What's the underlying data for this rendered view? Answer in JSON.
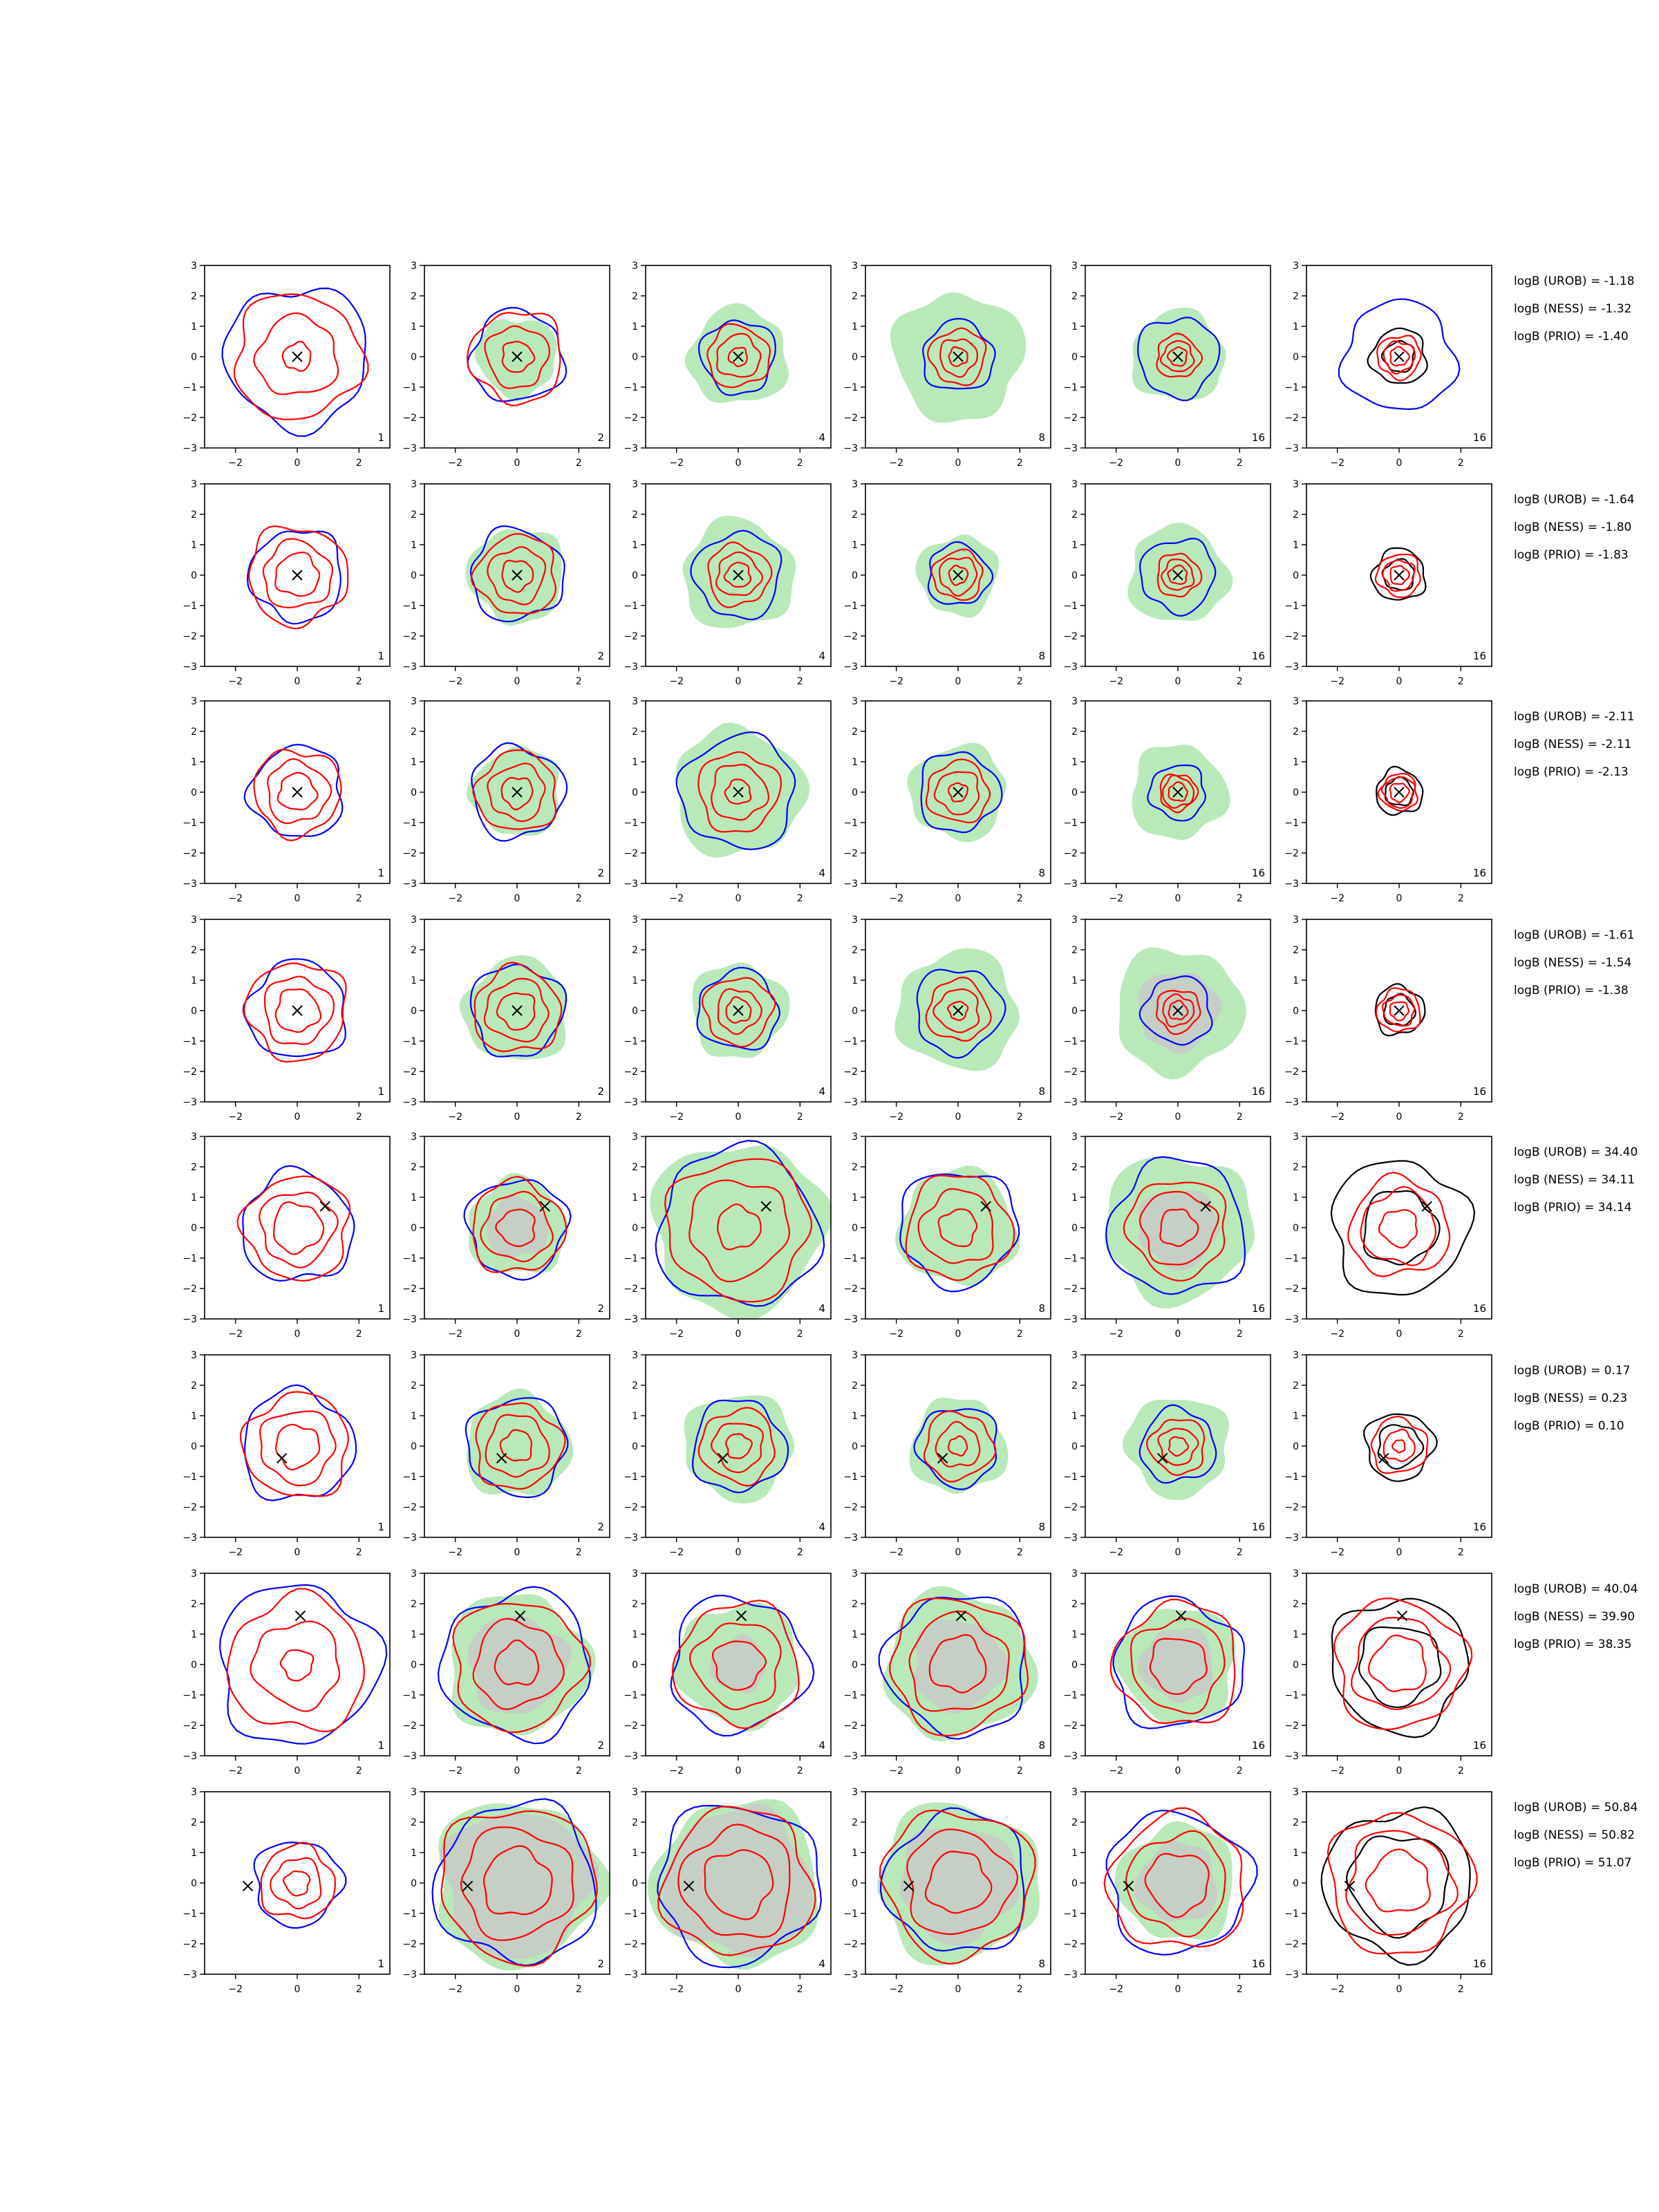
{
  "chart_data": {
    "type": "contour",
    "title": "",
    "grid": false,
    "xlim": [
      -3,
      3
    ],
    "ylim": [
      -3,
      3
    ],
    "xticks": [
      -2,
      0,
      2
    ],
    "yticks": [
      -3,
      -2,
      -1,
      0,
      1,
      2,
      3
    ],
    "xtick_labels": [
      "−2",
      "0",
      "2"
    ],
    "ytick_labels": [
      "−3",
      "−2",
      "−1",
      "0",
      "1",
      "2",
      "3"
    ],
    "colors": {
      "blue": "#0000ff",
      "red": "#ff0000",
      "black": "#000000",
      "green_fill": "#b9e9b9",
      "gray_fill": "#c8c8c8"
    },
    "column_labels": [
      "1",
      "2",
      "4",
      "8",
      "16",
      "16"
    ],
    "rows": [
      {
        "marker": [
          0,
          0
        ],
        "bayes_labels": [
          "logB (UROB) = -1.18",
          "logB (NESS) = -1.32",
          "logB (PRIO) = -1.40"
        ],
        "blue_r": [
          2.3,
          1.5,
          1.2,
          1.15,
          1.3,
          1.8
        ],
        "red_r": [
          [
            0.45,
            1.3,
            2.05
          ],
          [
            0.5,
            1.0,
            1.5
          ],
          [
            0.3,
            0.7,
            1.0
          ],
          [
            0.3,
            0.6,
            0.9
          ],
          [
            0.3,
            0.5,
            0.7
          ],
          [
            0.3,
            0.5,
            0.7
          ]
        ],
        "green_r": [
          0,
          1.3,
          1.6,
          2.1,
          1.5,
          0
        ],
        "gray_r": [
          0,
          0,
          0,
          0,
          0,
          0
        ],
        "black_r": [
          0.5,
          0.9
        ]
      },
      {
        "marker": [
          0,
          0
        ],
        "bayes_labels": [
          "logB (UROB) = -1.64",
          "logB (NESS) = -1.80",
          "logB (PRIO) = -1.83"
        ],
        "blue_r": [
          1.5,
          1.5,
          1.4,
          1.0,
          1.2,
          0
        ],
        "red_r": [
          [
            0.7,
            1.1,
            1.6
          ],
          [
            0.5,
            0.9,
            1.3
          ],
          [
            0.4,
            0.7,
            1.0
          ],
          [
            0.3,
            0.6,
            0.8
          ],
          [
            0.3,
            0.5,
            0.7
          ],
          [
            0.3,
            0.5,
            0.7
          ]
        ],
        "green_r": [
          0,
          1.55,
          1.8,
          1.3,
          1.6,
          0
        ],
        "gray_r": [
          0,
          0,
          0,
          0,
          0,
          0
        ],
        "black_r": [
          0.5,
          0.85
        ]
      },
      {
        "marker": [
          0,
          0
        ],
        "bayes_labels": [
          "logB (UROB) = -2.11",
          "logB (NESS) = -2.11",
          "logB (PRIO) = -2.13"
        ],
        "blue_r": [
          1.5,
          1.5,
          1.85,
          1.3,
          0.9,
          0
        ],
        "red_r": [
          [
            0.6,
            1.0,
            1.4
          ],
          [
            0.5,
            0.9,
            1.3
          ],
          [
            0.4,
            0.9,
            1.3
          ],
          [
            0.3,
            0.7,
            1.0
          ],
          [
            0.3,
            0.5,
            0.6
          ],
          [
            0.3,
            0.5,
            0.6
          ]
        ],
        "green_r": [
          0,
          1.45,
          2.1,
          1.55,
          1.55,
          0
        ],
        "gray_r": [
          0,
          0,
          0,
          0,
          0,
          0
        ],
        "black_r": [
          0.45,
          0.75
        ]
      },
      {
        "marker": [
          0,
          0
        ],
        "bayes_labels": [
          "logB (UROB) = -1.61",
          "logB (NESS) = -1.54",
          "logB (PRIO) = -1.38"
        ],
        "blue_r": [
          1.6,
          1.5,
          1.3,
          1.4,
          1.1,
          0
        ],
        "red_r": [
          [
            0.7,
            1.1,
            1.6
          ],
          [
            0.6,
            1.0,
            1.4
          ],
          [
            0.4,
            0.7,
            1.1
          ],
          [
            0.3,
            0.7,
            1.0
          ],
          [
            0.3,
            0.5,
            0.7
          ],
          [
            0.3,
            0.5,
            0.7
          ]
        ],
        "green_r": [
          0,
          1.7,
          1.55,
          1.95,
          2.05,
          0
        ],
        "gray_r": [
          0,
          0,
          0,
          0,
          1.3,
          0
        ],
        "black_r": [
          0.5,
          0.8
        ]
      },
      {
        "marker": [
          0.9,
          0.7
        ],
        "bayes_labels": [
          "logB (UROB) = 34.40",
          "logB (NESS) = 34.11",
          "logB (PRIO) = 34.14"
        ],
        "blue_r": [
          1.8,
          1.6,
          2.6,
          1.9,
          2.2,
          0
        ],
        "red_r": [
          [
            0.8,
            1.2,
            1.7
          ],
          [
            0.6,
            1.1,
            1.5
          ],
          [
            0.7,
            1.6,
            2.3
          ],
          [
            0.6,
            1.2,
            1.7
          ],
          [
            0.6,
            1.2,
            1.6
          ],
          [
            0.6,
            1.2,
            1.6
          ]
        ],
        "green_r": [
          0,
          1.6,
          2.8,
          1.9,
          2.4,
          0
        ],
        "gray_r": [
          0,
          1.0,
          0,
          0,
          1.3,
          0
        ],
        "black_r": [
          1.2,
          2.2
        ]
      },
      {
        "marker": [
          -0.5,
          -0.4
        ],
        "bayes_labels": [
          "logB (UROB) = 0.17",
          "logB (NESS) = 0.23",
          "logB (PRIO) = 0.10"
        ],
        "blue_r": [
          1.8,
          1.6,
          1.5,
          1.3,
          1.2,
          0
        ],
        "red_r": [
          [
            0.7,
            1.2,
            1.7
          ],
          [
            0.5,
            1.0,
            1.4
          ],
          [
            0.4,
            0.8,
            1.2
          ],
          [
            0.3,
            0.7,
            1.1
          ],
          [
            0.3,
            0.6,
            0.9
          ],
          [
            0.2,
            0.5,
            0.9
          ]
        ],
        "green_r": [
          0,
          1.7,
          1.75,
          1.55,
          1.65,
          0
        ],
        "gray_r": [
          0,
          0,
          0,
          0,
          0,
          0
        ],
        "black_r": [
          0.7,
          1.1
        ]
      },
      {
        "marker": [
          0.1,
          1.6
        ],
        "bayes_labels": [
          "logB (UROB) = 40.04",
          "logB (NESS) = 39.90",
          "logB (PRIO) = 38.35"
        ],
        "blue_r": [
          2.6,
          2.4,
          2.2,
          2.3,
          2.1,
          0
        ],
        "red_r": [
          [
            0.5,
            1.4,
            2.2
          ],
          [
            0.7,
            1.4,
            2.1
          ],
          [
            0.8,
            1.4,
            2.0
          ],
          [
            0.9,
            1.6,
            2.2
          ],
          [
            0.9,
            1.5,
            2.0
          ],
          [
            0.9,
            1.5,
            2.1
          ]
        ],
        "green_r": [
          0,
          2.3,
          2.0,
          2.4,
          1.9,
          0
        ],
        "gray_r": [
          0,
          1.6,
          0.9,
          1.5,
          1.2,
          0
        ],
        "black_r": [
          1.3,
          2.2
        ]
      },
      {
        "marker": [
          -1.6,
          -0.1
        ],
        "bayes_labels": [
          "logB (UROB) = 50.84",
          "logB (NESS) = 50.82",
          "logB (PRIO) = 51.07"
        ],
        "blue_r": [
          1.4,
          2.6,
          2.6,
          2.3,
          2.3,
          0
        ],
        "red_r": [
          [
            0.4,
            0.8,
            1.2
          ],
          [
            1.1,
            1.8,
            2.5
          ],
          [
            1.1,
            1.8,
            2.4
          ],
          [
            1.0,
            1.7,
            2.4
          ],
          [
            1.0,
            1.6,
            2.2
          ],
          [
            1.0,
            1.7,
            2.3
          ]
        ],
        "green_r": [
          0,
          2.7,
          2.7,
          2.6,
          1.9,
          0
        ],
        "gray_r": [
          0,
          2.4,
          2.4,
          1.9,
          1.3,
          0
        ],
        "black_r": [
          1.6,
          2.4
        ]
      }
    ]
  }
}
